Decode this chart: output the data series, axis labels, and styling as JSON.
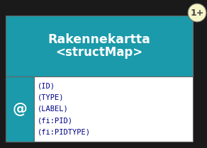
{
  "title_text": "Rakennekartta",
  "subtitle_text": "<structMap>",
  "badge_text": "1+",
  "at_symbol": "@",
  "attributes": [
    "(ID)",
    "(TYPE)",
    "(LABEL)",
    "(fi:PID)",
    "(fi:PIDTYPE)"
  ],
  "header_bg_color": "#1a9aaa",
  "header_text_color": "#ffffff",
  "body_bg_color": "#ffffff",
  "sidebar_bg_color": "#1a9aaa",
  "sidebar_text_color": "#ffffff",
  "badge_bg_color": "#f5f5c8",
  "badge_text_color": "#444444",
  "border_color": "#666666",
  "attr_text_color": "#00008b",
  "background_color": "#1a1a1a",
  "fig_width": 2.92,
  "fig_height": 2.09,
  "dpi": 100
}
